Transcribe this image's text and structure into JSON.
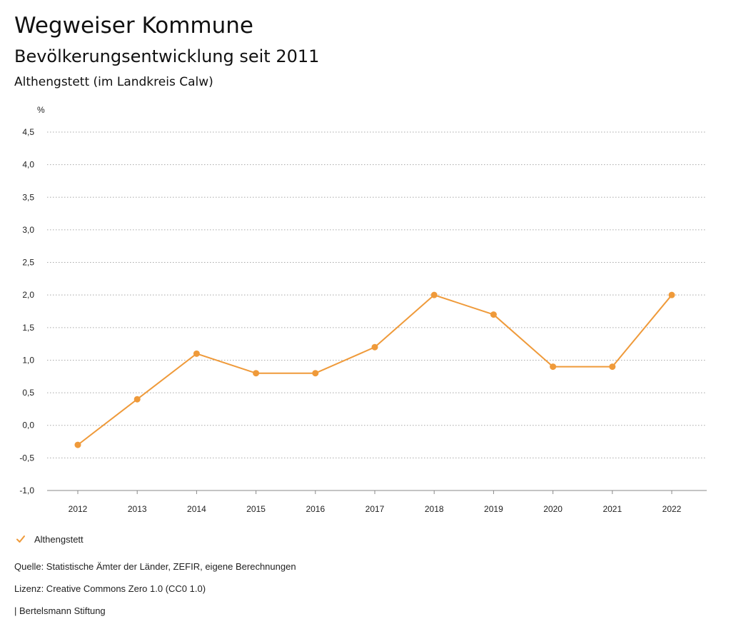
{
  "header": {
    "title": "Wegweiser Kommune",
    "subtitle": "Bevölkerungsentwicklung seit 2011",
    "region": "Althengstett (im Landkreis Calw)"
  },
  "chart_data": {
    "type": "line",
    "ylabel": "%",
    "xlabel": "",
    "categories": [
      "2012",
      "2013",
      "2014",
      "2015",
      "2016",
      "2017",
      "2018",
      "2019",
      "2020",
      "2021",
      "2022"
    ],
    "series": [
      {
        "name": "Althengstett",
        "values": [
          -0.3,
          0.4,
          1.1,
          0.8,
          0.8,
          1.2,
          2.0,
          1.7,
          0.9,
          0.9,
          2.0
        ]
      }
    ],
    "ylim": [
      -1.0,
      4.5
    ],
    "yticks": [
      -1.0,
      -0.5,
      0.0,
      0.5,
      1.0,
      1.5,
      2.0,
      2.5,
      3.0,
      3.5,
      4.0,
      4.5
    ],
    "ytick_labels": [
      "-1,0",
      "-0,5",
      "0,0",
      "0,5",
      "1,0",
      "1,5",
      "2,0",
      "2,5",
      "3,0",
      "3,5",
      "4,0",
      "4,5"
    ],
    "grid": true,
    "legend_position": "bottom-left",
    "color": "#ef9a3a"
  },
  "legend": {
    "label": "Althengstett",
    "icon": "check-icon"
  },
  "footer": {
    "source": "Quelle: Statistische Ämter der Länder, ZEFIR, eigene Berechnungen",
    "license": "Lizenz: Creative Commons Zero 1.0 (CC0 1.0)",
    "publisher": "| Bertelsmann Stiftung"
  }
}
